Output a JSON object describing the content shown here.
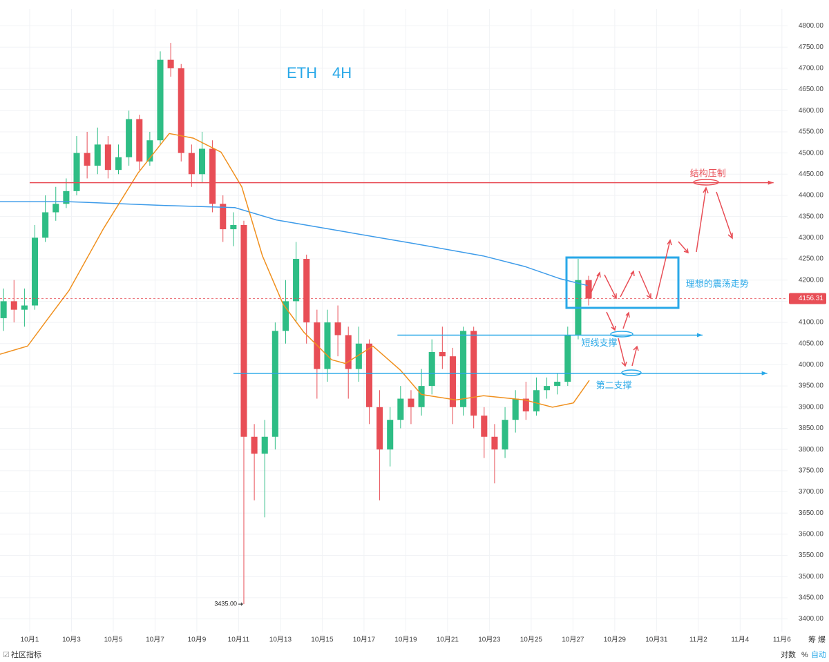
{
  "chart_data": {
    "type": "candlestick",
    "title": "ETH　4H",
    "up_color": "#2ebd85",
    "down_color": "#e84e56",
    "xlim": [
      -1.42,
      36.27
    ],
    "ylim": [
      3370,
      4840
    ],
    "xticks": [
      {
        "value": 0,
        "label": "10月1"
      },
      {
        "value": 2,
        "label": "10月3"
      },
      {
        "value": 4,
        "label": "10月5"
      },
      {
        "value": 6,
        "label": "10月7"
      },
      {
        "value": 8,
        "label": "10月9"
      },
      {
        "value": 10,
        "label": "10月11"
      },
      {
        "value": 12,
        "label": "10月13"
      },
      {
        "value": 14,
        "label": "10月15"
      },
      {
        "value": 16,
        "label": "10月17"
      },
      {
        "value": 18,
        "label": "10月19"
      },
      {
        "value": 20,
        "label": "10月21"
      },
      {
        "value": 22,
        "label": "10月23"
      },
      {
        "value": 24,
        "label": "10月25"
      },
      {
        "value": 26,
        "label": "10月27"
      },
      {
        "value": 28,
        "label": "10月29"
      },
      {
        "value": 30,
        "label": "10月31"
      },
      {
        "value": 32,
        "label": "11月2"
      },
      {
        "value": 34,
        "label": "11月4"
      },
      {
        "value": 36,
        "label": "11月6"
      }
    ],
    "yticks": [
      {
        "value": 3400,
        "label": "3400.00"
      },
      {
        "value": 3450,
        "label": "3450.00"
      },
      {
        "value": 3500,
        "label": "3500.00"
      },
      {
        "value": 3550,
        "label": "3550.00"
      },
      {
        "value": 3600,
        "label": "3600.00"
      },
      {
        "value": 3650,
        "label": "3650.00"
      },
      {
        "value": 3700,
        "label": "3700.00"
      },
      {
        "value": 3750,
        "label": "3750.00"
      },
      {
        "value": 3800,
        "label": "3800.00"
      },
      {
        "value": 3850,
        "label": "3850.00"
      },
      {
        "value": 3900,
        "label": "3900.00"
      },
      {
        "value": 3950,
        "label": "3950.00"
      },
      {
        "value": 4000,
        "label": "4000.00"
      },
      {
        "value": 4050,
        "label": "4050.00"
      },
      {
        "value": 4100,
        "label": "4100.00"
      },
      {
        "value": 4150,
        "label": "4150.00"
      },
      {
        "value": 4200,
        "label": "4200.00"
      },
      {
        "value": 4250,
        "label": "4250.00"
      },
      {
        "value": 4300,
        "label": "4300.00"
      },
      {
        "value": 4350,
        "label": "4350.00"
      },
      {
        "value": 4400,
        "label": "4400.00"
      },
      {
        "value": 4450,
        "label": "4450.00"
      },
      {
        "value": 4500,
        "label": "4500.00"
      },
      {
        "value": 4550,
        "label": "4550.00"
      },
      {
        "value": 4600,
        "label": "4600.00"
      },
      {
        "value": 4650,
        "label": "4650.00"
      },
      {
        "value": 4700,
        "label": "4700.00"
      },
      {
        "value": 4750,
        "label": "4750.00"
      },
      {
        "value": 4800,
        "label": "4800.00"
      }
    ],
    "grid": true,
    "candles": {
      "x": [
        -1.25,
        -0.75,
        -0.25,
        0.25,
        0.75,
        1.25,
        1.75,
        2.25,
        2.75,
        3.25,
        3.75,
        4.25,
        4.75,
        5.25,
        5.75,
        6.25,
        6.75,
        7.25,
        7.75,
        8.25,
        8.75,
        9.25,
        9.75,
        10.25,
        10.75,
        11.25,
        11.75,
        12.25,
        12.75,
        13.25,
        13.75,
        14.25,
        14.75,
        15.25,
        15.75,
        16.25,
        16.75,
        17.25,
        17.75,
        18.25,
        18.75,
        19.25,
        19.75,
        20.25,
        20.75,
        21.25,
        21.75,
        22.25,
        22.75,
        23.25,
        23.75,
        24.25,
        24.75,
        25.25,
        25.75,
        26.25,
        26.75
      ],
      "open": [
        4110,
        4150,
        4130,
        4140,
        4300,
        4360,
        4380,
        4410,
        4500,
        4470,
        4520,
        4460,
        4490,
        4580,
        4480,
        4530,
        4720,
        4700,
        4500,
        4450,
        4510,
        4380,
        4320,
        4330,
        3830,
        3790,
        3830,
        4080,
        4150,
        4250,
        4100,
        3990,
        4100,
        4070,
        3990,
        4050,
        3900,
        3800,
        3870,
        3920,
        3900,
        3950,
        4030,
        4020,
        3900,
        4080,
        3880,
        3830,
        3800,
        3870,
        3920,
        3890,
        3940,
        3950,
        3960,
        4070,
        4200
      ],
      "high": [
        4180,
        4200,
        4180,
        4330,
        4400,
        4420,
        4440,
        4540,
        4550,
        4560,
        4540,
        4520,
        4600,
        4590,
        4550,
        4740,
        4760,
        4710,
        4520,
        4550,
        4530,
        4400,
        4360,
        4340,
        3860,
        3870,
        4100,
        4200,
        4290,
        4260,
        4130,
        4130,
        4140,
        4090,
        4090,
        4060,
        3940,
        3900,
        3950,
        3940,
        3990,
        4060,
        4090,
        4040,
        4090,
        4090,
        3900,
        3860,
        3900,
        3940,
        3960,
        3970,
        3970,
        3980,
        4090,
        4250,
        4210
      ],
      "low": [
        4080,
        4100,
        4090,
        4130,
        4290,
        4340,
        4370,
        4400,
        4440,
        4450,
        4440,
        4450,
        4470,
        4460,
        4470,
        4520,
        4680,
        4480,
        4420,
        4430,
        4360,
        4290,
        4280,
        3435,
        3680,
        3640,
        3800,
        4050,
        4100,
        4050,
        3920,
        3960,
        4020,
        3920,
        3960,
        3860,
        3680,
        3760,
        3850,
        3860,
        3880,
        3930,
        3990,
        3860,
        3880,
        3850,
        3780,
        3720,
        3780,
        3840,
        3870,
        3880,
        3920,
        3930,
        3950,
        4060,
        4140
      ],
      "close": [
        4150,
        4130,
        4140,
        4300,
        4360,
        4380,
        4410,
        4500,
        4470,
        4520,
        4460,
        4490,
        4580,
        4480,
        4530,
        4720,
        4700,
        4500,
        4450,
        4510,
        4380,
        4320,
        4330,
        3830,
        3790,
        3830,
        4080,
        4150,
        4250,
        4100,
        3990,
        4100,
        4070,
        3990,
        4050,
        3900,
        3800,
        3870,
        3920,
        3900,
        3950,
        4030,
        4020,
        3900,
        4080,
        3880,
        3830,
        3800,
        3870,
        3920,
        3890,
        3940,
        3950,
        3960,
        4070,
        4200,
        4156.31
      ]
    },
    "series": [
      {
        "color": "#3d9be9",
        "x": [
          -1.42,
          1.88,
          6.51,
          9.82,
          11.8,
          15.1,
          18.4,
          21.7,
          23.7,
          25.4,
          26.7
        ],
        "values": [
          4385,
          4385,
          4376,
          4371,
          4342,
          4314,
          4286,
          4257,
          4232,
          4203,
          4187
        ]
      },
      {
        "color": "#f0901e",
        "x": [
          -1.42,
          -0.1,
          0.89,
          1.88,
          3.54,
          5.19,
          6.68,
          7.83,
          9.16,
          10.15,
          11.14,
          12.13,
          13.12,
          14.45,
          15.11,
          16.43,
          17.75,
          18.74,
          20.4,
          21.72,
          23.7,
          25.02,
          26.02,
          26.78
        ],
        "values": [
          4025,
          4044,
          4110,
          4175,
          4322,
          4453,
          4546,
          4535,
          4502,
          4420,
          4257,
          4143,
          4077,
          4012,
          4003,
          4044,
          3987,
          3930,
          3917,
          3927,
          3917,
          3900,
          3910,
          3963
        ]
      }
    ],
    "levels": [
      {
        "value": 4430,
        "color": "#e84e56",
        "from": 0,
        "to": 35.6
      },
      {
        "value": 4070,
        "color": "#29a8e8",
        "from": 17.6,
        "to": 32.2
      },
      {
        "value": 3980,
        "color": "#29a8e8",
        "from": 9.75,
        "to": 35.3
      }
    ],
    "last_price": {
      "value": 4156.31,
      "label": "4156.31"
    },
    "low_label": {
      "value": 3435,
      "label": "3435.00"
    },
    "annotations": [
      {
        "text": "结构压制",
        "color": "#e84e56",
        "x": 31.6,
        "y": 4450
      },
      {
        "text": "理想的震荡走势",
        "color": "#29a8e8",
        "x": 31.4,
        "y": 4190
      },
      {
        "text": "短线支撑",
        "color": "#29a8e8",
        "x": 26.4,
        "y": 4050
      },
      {
        "text": "第二支撑",
        "color": "#29a8e8",
        "x": 27.1,
        "y": 3950
      }
    ],
    "toolbar": {
      "left": "社区指标",
      "scale_log": "对数",
      "scale_pct": "%",
      "scale_auto": "自动",
      "corner": "筹 爆"
    }
  }
}
